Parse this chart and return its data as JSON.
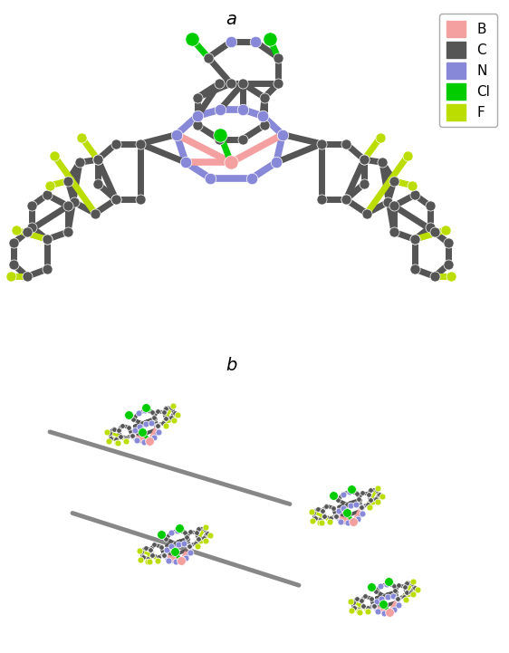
{
  "title_a": "a",
  "title_b": "b",
  "legend_items": [
    {
      "label": "B",
      "color": "#F4A0A0"
    },
    {
      "label": "C",
      "color": "#555555"
    },
    {
      "label": "N",
      "color": "#8888D8"
    },
    {
      "label": "Cl",
      "color": "#00CC00"
    },
    {
      "label": "F",
      "color": "#BBDD00"
    }
  ],
  "bg": "#ffffff",
  "fig_width": 5.62,
  "fig_height": 7.21,
  "dpi": 100
}
